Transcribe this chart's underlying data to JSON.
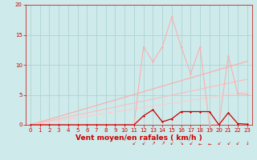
{
  "background_color": "#ceeaea",
  "grid_color": "#aacfcf",
  "xlabel": "Vent moyen/en rafales ( km/h )",
  "xlabel_color": "#cc0000",
  "xlabel_fontsize": 6.5,
  "tick_color": "#cc0000",
  "tick_fontsize": 5.0,
  "xlim": [
    -0.5,
    23.5
  ],
  "ylim": [
    0,
    20
  ],
  "xticks": [
    0,
    1,
    2,
    3,
    4,
    5,
    6,
    7,
    8,
    9,
    10,
    11,
    12,
    13,
    14,
    15,
    16,
    17,
    18,
    19,
    20,
    21,
    22,
    23
  ],
  "yticks": [
    0,
    5,
    10,
    15,
    20
  ],
  "line_straight_slopes": [
    0.46,
    0.33,
    0.24
  ],
  "line_straight_colors": [
    "#ffaaaa",
    "#ffbbbb",
    "#ffcccc"
  ],
  "rafales_x": [
    0,
    1,
    2,
    3,
    4,
    5,
    6,
    7,
    8,
    9,
    10,
    11,
    12,
    13,
    14,
    15,
    16,
    17,
    18,
    19,
    20,
    21,
    22,
    23
  ],
  "rafales_y": [
    0,
    0,
    0,
    0,
    0,
    0,
    0,
    0,
    0,
    0,
    0,
    0,
    13.0,
    10.5,
    13.0,
    18.0,
    13.0,
    8.5,
    13.0,
    0,
    0,
    11.5,
    5.2,
    5.1
  ],
  "rafales_color": "#ffaaaa",
  "moyen_x": [
    0,
    1,
    2,
    3,
    4,
    5,
    6,
    7,
    8,
    9,
    10,
    11,
    12,
    13,
    14,
    15,
    16,
    17,
    18,
    19,
    20,
    21,
    22,
    23
  ],
  "moyen_y": [
    0,
    0,
    0,
    0,
    0,
    0,
    0,
    0,
    0,
    0,
    0,
    0,
    1.5,
    2.5,
    0.5,
    1.0,
    2.2,
    2.2,
    2.2,
    2.2,
    0,
    2.0,
    0.2,
    0.1
  ],
  "moyen_color": "#cc0000",
  "arrows_x": [
    11,
    12,
    13,
    14,
    15,
    16,
    17,
    18,
    19,
    20,
    21,
    22,
    23
  ],
  "arrows_color": "#cc0000",
  "spine_color": "#cc0000"
}
